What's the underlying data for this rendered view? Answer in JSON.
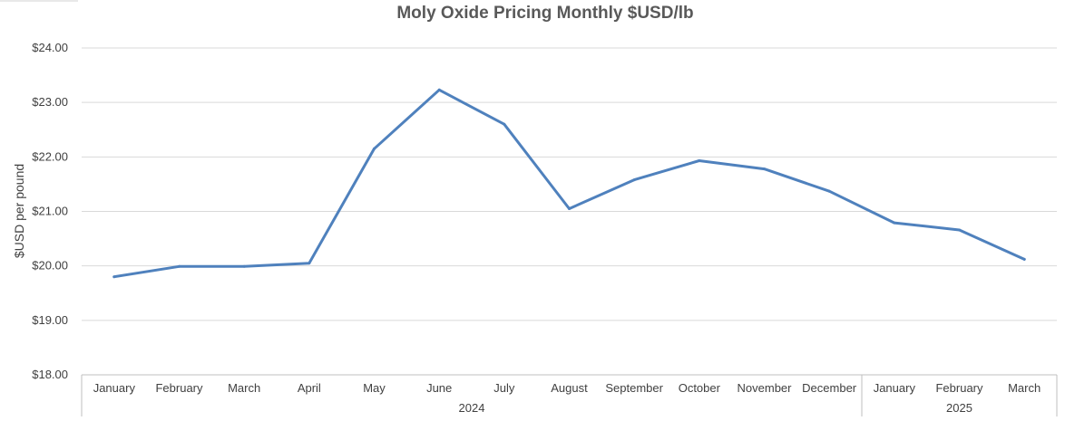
{
  "chart_data": {
    "type": "line",
    "title": "Moly Oxide Pricing Monthly $USD/lb",
    "xlabel": "",
    "ylabel": "$USD per pound",
    "ylim": [
      18,
      24
    ],
    "y_ticks": [
      "$18.00",
      "$19.00",
      "$20.00",
      "$21.00",
      "$22.00",
      "$23.00",
      "$24.00"
    ],
    "categories": [
      "January",
      "February",
      "March",
      "April",
      "May",
      "June",
      "July",
      "August",
      "September",
      "October",
      "November",
      "December",
      "January",
      "February",
      "March"
    ],
    "groups": [
      {
        "label": "2024",
        "count": 12
      },
      {
        "label": "2025",
        "count": 3
      }
    ],
    "series": [
      {
        "values": [
          19.8,
          19.99,
          19.99,
          20.05,
          22.15,
          23.23,
          22.6,
          21.05,
          21.58,
          21.93,
          21.78,
          21.37,
          20.79,
          20.66,
          20.12
        ]
      }
    ],
    "colors": {
      "line": "#4f81bd"
    },
    "grid": true,
    "legend": "none"
  }
}
